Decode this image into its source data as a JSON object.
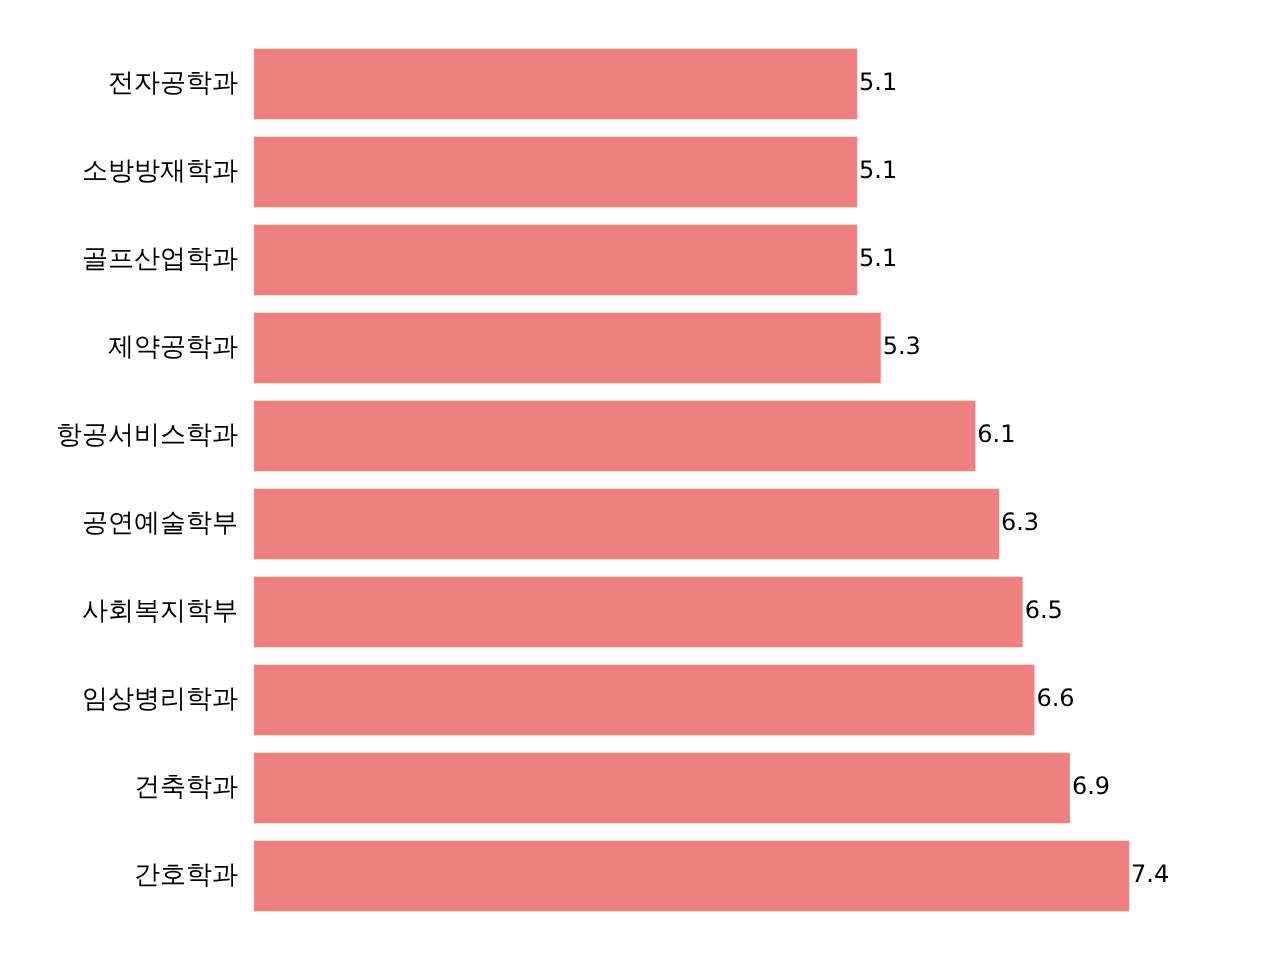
{
  "chart_data": {
    "type": "bar",
    "orientation": "horizontal",
    "categories": [
      "전자공학과",
      "소방방재학과",
      "골프산업학과",
      "제약공학과",
      "항공서비스학과",
      "공연예술학부",
      "사회복지학부",
      "임상병리학과",
      "건축학과",
      "간호학과"
    ],
    "values": [
      5.1,
      5.1,
      5.1,
      5.3,
      6.1,
      6.3,
      6.5,
      6.6,
      6.9,
      7.4
    ],
    "color": "#f08080",
    "data_labels": true,
    "grid": false,
    "legend": false,
    "tick_labels": "y"
  }
}
